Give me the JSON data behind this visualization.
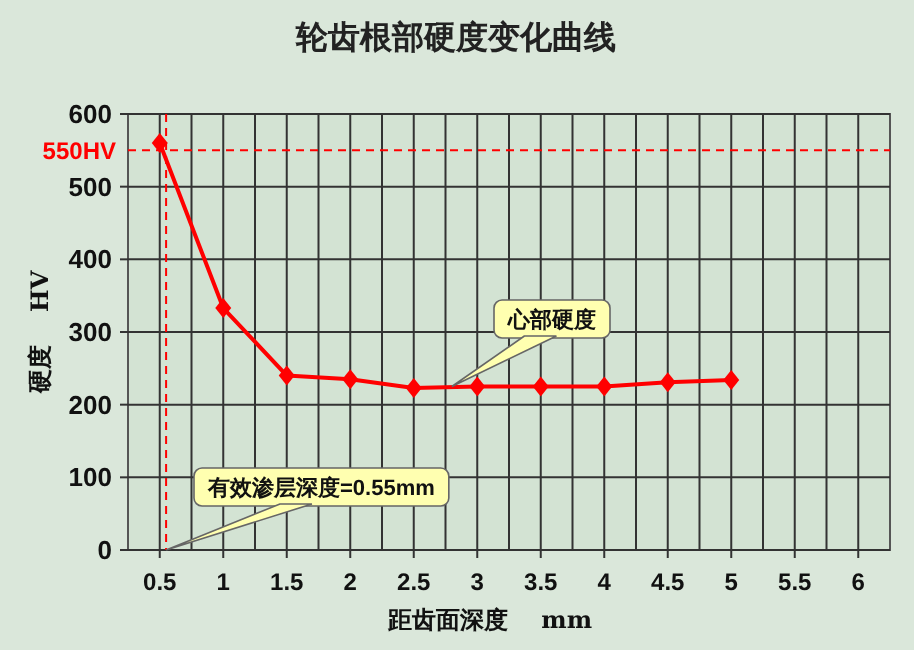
{
  "chart_data": {
    "type": "line",
    "title": "轮齿根部硬度变化曲线",
    "xlabel": "距齿面深度    mm",
    "ylabel": "硬度    HV",
    "x": [
      0.5,
      1,
      1.5,
      2,
      2.5,
      3,
      3.5,
      4,
      4.5,
      5
    ],
    "series": [
      {
        "color": "#ff0000",
        "values": [
          560,
          333,
          240,
          235,
          223,
          225,
          225,
          225,
          231,
          234
        ]
      }
    ],
    "xlim": [
      0.25,
      6.25
    ],
    "xticks": [
      0.5,
      1,
      1.5,
      2,
      2.5,
      3,
      3.5,
      4,
      4.5,
      5,
      5.5,
      6
    ],
    "ylim": [
      0,
      600
    ],
    "yticks": [
      0,
      100,
      200,
      300,
      400,
      500,
      600
    ],
    "grid": true,
    "marker": "diamond",
    "line_style": "solid",
    "ref_lines": [
      {
        "axis": "y",
        "value": 550,
        "label": "550HV",
        "color": "#ff0000",
        "line_style": "dashed"
      },
      {
        "axis": "x",
        "value": 0.55,
        "color": "#ff0000",
        "line_style": "dashed"
      }
    ],
    "annotations": [
      {
        "text": "心部硬度",
        "x": 2.8,
        "y": 225
      },
      {
        "text": "有效渗层深度=0.55mm",
        "x": 0.55,
        "y": 0
      }
    ]
  }
}
